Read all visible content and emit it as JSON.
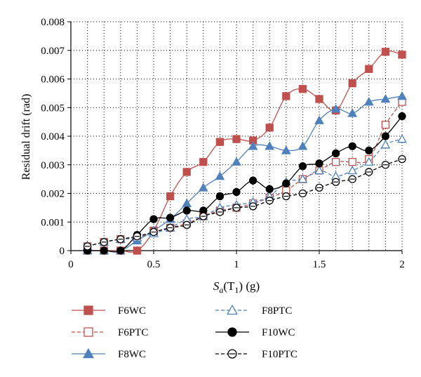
{
  "chart_data": {
    "type": "line",
    "title": "",
    "ylabel": "Residual drift (rad)",
    "xlabel": {
      "base": "S",
      "sub1": "a",
      "mid": "(T",
      "sub2": "1",
      "end": ") (g)"
    },
    "xlim": [
      0,
      2
    ],
    "ylim": [
      0,
      0.008
    ],
    "x_ticks": [
      "0",
      "0.5",
      "1",
      "1.5",
      "2"
    ],
    "y_ticks": [
      "0",
      "0.001",
      "0.002",
      "0.003",
      "0.004",
      "0.005",
      "0.006",
      "0.007",
      "0.008"
    ],
    "grid": "dotted vertical and horizontal",
    "legend_position": "bottom",
    "x": [
      0.1,
      0.2,
      0.3,
      0.4,
      0.5,
      0.6,
      0.7,
      0.8,
      0.9,
      1.0,
      1.1,
      1.2,
      1.3,
      1.4,
      1.5,
      1.6,
      1.7,
      1.8,
      1.9,
      2.0
    ],
    "series": [
      {
        "name": "F6WC",
        "color": "#c0504d",
        "marker": "square",
        "filled": true,
        "dashed": false,
        "values": [
          0.0,
          0.0,
          0.0,
          0.0,
          0.0007,
          0.0019,
          0.00275,
          0.0031,
          0.0038,
          0.0039,
          0.00385,
          0.0043,
          0.0054,
          0.00565,
          0.0053,
          0.0049,
          0.00585,
          0.00635,
          0.00695,
          0.00685
        ]
      },
      {
        "name": "F6PTC",
        "color": "#c0504d",
        "marker": "square",
        "filled": false,
        "dashed": true,
        "values": [
          0.00015,
          0.0003,
          0.0004,
          0.00045,
          0.00065,
          0.0008,
          0.00095,
          0.0012,
          0.0014,
          0.0015,
          0.00165,
          0.00185,
          0.0021,
          0.0025,
          0.0028,
          0.0031,
          0.0031,
          0.0032,
          0.0044,
          0.0052
        ]
      },
      {
        "name": "F8WC",
        "color": "#4f81bd",
        "marker": "triangle",
        "filled": true,
        "dashed": false,
        "values": [
          0.0,
          0.0,
          0.0,
          0.00035,
          0.0007,
          0.0011,
          0.00165,
          0.0022,
          0.0026,
          0.0031,
          0.00365,
          0.00365,
          0.0035,
          0.00365,
          0.00455,
          0.00495,
          0.0048,
          0.0052,
          0.0053,
          0.0054
        ]
      },
      {
        "name": "F8PTC",
        "color": "#4f81bd",
        "marker": "triangle",
        "filled": false,
        "dashed": true,
        "values": [
          0.00015,
          0.0003,
          0.0004,
          0.00045,
          0.0006,
          0.0008,
          0.0011,
          0.0012,
          0.0015,
          0.0016,
          0.0017,
          0.0019,
          0.0024,
          0.0025,
          0.0028,
          0.0026,
          0.0028,
          0.0031,
          0.0037,
          0.0039
        ]
      },
      {
        "name": "F10WC",
        "color": "#000000",
        "marker": "circle",
        "filled": true,
        "dashed": false,
        "values": [
          0.0,
          0.0,
          0.0,
          0.00055,
          0.0011,
          0.00115,
          0.0014,
          0.0014,
          0.0019,
          0.00205,
          0.00245,
          0.00215,
          0.00235,
          0.00295,
          0.00305,
          0.0034,
          0.00365,
          0.0035,
          0.004,
          0.0047
        ]
      },
      {
        "name": "F10PTC",
        "color": "#000000",
        "marker": "circle",
        "filled": false,
        "dashed": true,
        "values": [
          0.00015,
          0.0003,
          0.0004,
          0.0005,
          0.00065,
          0.0008,
          0.0009,
          0.0012,
          0.00135,
          0.0015,
          0.00155,
          0.00175,
          0.0019,
          0.002,
          0.0022,
          0.0024,
          0.0025,
          0.00275,
          0.003,
          0.0032
        ]
      }
    ]
  }
}
